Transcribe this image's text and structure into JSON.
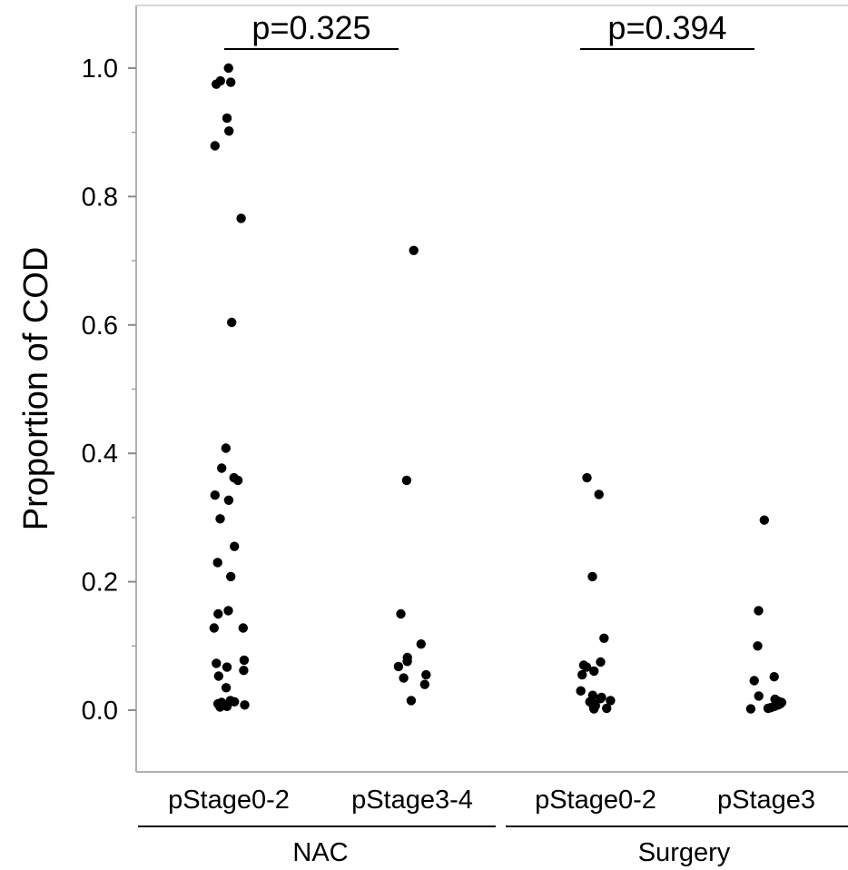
{
  "chart_data": {
    "type": "scatter",
    "title": "",
    "xlabel": "",
    "ylabel": "Proportion of COD",
    "ylim": [
      -0.1,
      1.1
    ],
    "yticks": [
      "0.0",
      "0.2",
      "0.4",
      "0.6",
      "0.8",
      "1.0"
    ],
    "grid": false,
    "categories": [
      "pStage0-2",
      "pStage3-4",
      "pStage0-2",
      "pStage3"
    ],
    "groups": [
      {
        "label": "NAC",
        "categories": [
          0,
          1
        ]
      },
      {
        "label": "Surgery",
        "categories": [
          2,
          3
        ]
      }
    ],
    "annotations": [
      {
        "text": "p=0.325",
        "between": [
          0,
          1
        ]
      },
      {
        "text": "p=0.394",
        "between": [
          2,
          3
        ]
      }
    ],
    "series": [
      {
        "category": "pStage0-2",
        "group": "NAC",
        "values": [
          1.0,
          0.978,
          0.975,
          0.98,
          0.922,
          0.902,
          0.879,
          0.766,
          0.604,
          0.408,
          0.377,
          0.358,
          0.362,
          0.335,
          0.327,
          0.298,
          0.255,
          0.23,
          0.208,
          0.155,
          0.15,
          0.128,
          0.128,
          0.078,
          0.073,
          0.067,
          0.062,
          0.053,
          0.035,
          0.015,
          0.013,
          0.012,
          0.01,
          0.008,
          0.006,
          0.005
        ]
      },
      {
        "category": "pStage3-4",
        "group": "NAC",
        "values": [
          0.716,
          0.358,
          0.15,
          0.103,
          0.082,
          0.076,
          0.068,
          0.055,
          0.05,
          0.04,
          0.015
        ]
      },
      {
        "category": "pStage0-2",
        "group": "Surgery",
        "values": [
          0.362,
          0.336,
          0.208,
          0.112,
          0.075,
          0.07,
          0.067,
          0.061,
          0.055,
          0.03,
          0.023,
          0.02,
          0.018,
          0.015,
          0.013,
          0.01,
          0.007,
          0.005,
          0.003,
          0.002
        ]
      },
      {
        "category": "pStage3",
        "group": "Surgery",
        "values": [
          0.296,
          0.155,
          0.1,
          0.052,
          0.046,
          0.022,
          0.017,
          0.014,
          0.012,
          0.01,
          0.008,
          0.006,
          0.004,
          0.003,
          0.002
        ]
      }
    ],
    "point_color": "#000000"
  }
}
